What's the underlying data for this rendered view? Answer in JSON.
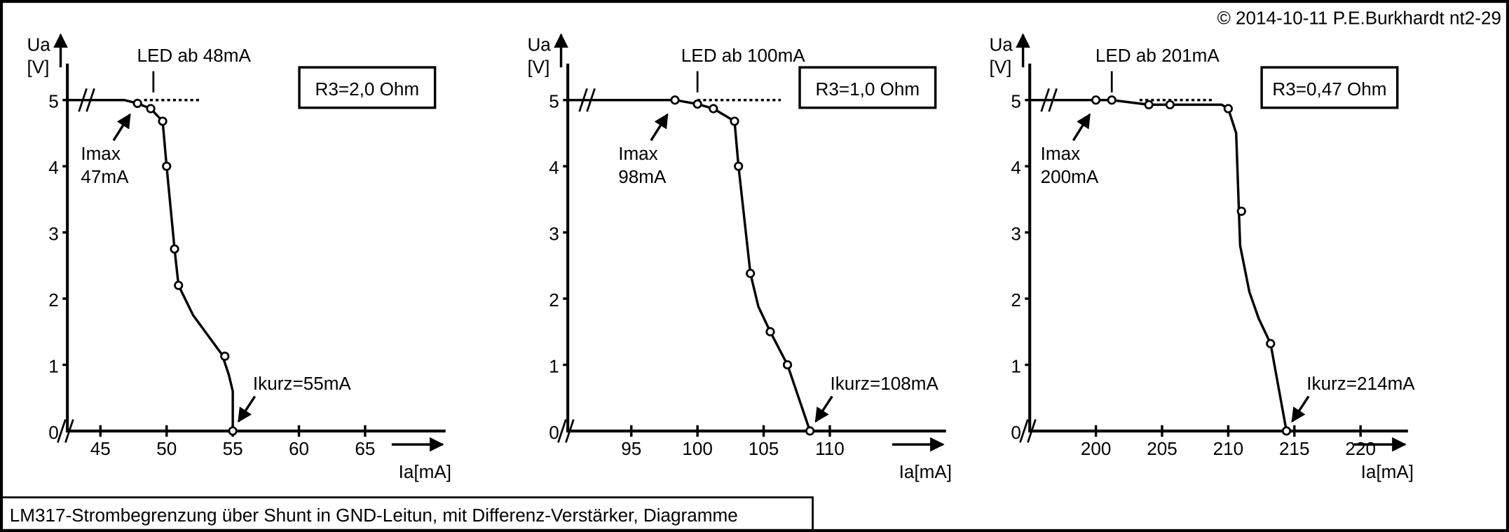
{
  "copyright": "© 2014-10-11 P.E.Burkhardt nt2-29",
  "caption": "LM317-Strombegrenzung über Shunt in GND-Leitun, mit Differenz-Verstärker, Diagramme",
  "chart_data": [
    {
      "type": "line",
      "title": "R3=2,0 Ohm",
      "ylabel": "Ua",
      "yunit": "[V]",
      "xlabel": "Ia[mA]",
      "xlim": [
        42.5,
        71
      ],
      "ylim": [
        0,
        5
      ],
      "xticks": [
        45,
        50,
        55,
        60,
        65
      ],
      "yticks": [
        0,
        1,
        2,
        3,
        4,
        5
      ],
      "grid": false,
      "line": [
        [
          42.5,
          5
        ],
        [
          46.8,
          5
        ],
        [
          47.8,
          4.95
        ],
        [
          48.8,
          4.87
        ],
        [
          49.7,
          4.68
        ],
        [
          50,
          4
        ],
        [
          50.6,
          2.75
        ],
        [
          50.9,
          2.2
        ],
        [
          52,
          1.75
        ],
        [
          54.2,
          1.15
        ],
        [
          54.7,
          0.85
        ],
        [
          55,
          0.6
        ],
        [
          55,
          0
        ]
      ],
      "points": [
        [
          47.8,
          4.95
        ],
        [
          48.8,
          4.87
        ],
        [
          49.7,
          4.68
        ],
        [
          50,
          4
        ],
        [
          50.6,
          2.75
        ],
        [
          50.9,
          2.2
        ],
        [
          54.4,
          1.13
        ],
        [
          55,
          0
        ]
      ],
      "led_line": [
        48.3,
        52.5
      ],
      "annotations": {
        "led": "LED ab 48mA",
        "led_x": 49,
        "imax": [
          "Imax",
          "47mA"
        ],
        "imax_x": 47.3,
        "ikurz": "Ikurz=55mA",
        "ikurz_x": 55
      }
    },
    {
      "type": "line",
      "title": "R3=1,0 Ohm",
      "ylabel": "Ua",
      "yunit": "[V]",
      "xlabel": "Ia[mA]",
      "xlim": [
        90.2,
        118.5
      ],
      "ylim": [
        0,
        5
      ],
      "xticks": [
        95,
        100,
        105,
        110
      ],
      "yticks": [
        0,
        1,
        2,
        3,
        4,
        5
      ],
      "grid": false,
      "line": [
        [
          90.2,
          5
        ],
        [
          98.3,
          5
        ],
        [
          100,
          4.94
        ],
        [
          101.2,
          4.87
        ],
        [
          102.8,
          4.68
        ],
        [
          103.1,
          4
        ],
        [
          104,
          2.38
        ],
        [
          104.6,
          1.88
        ],
        [
          105.5,
          1.5
        ],
        [
          106.8,
          1.0
        ],
        [
          108.5,
          0
        ]
      ],
      "points": [
        [
          98.3,
          5
        ],
        [
          100,
          4.94
        ],
        [
          101.2,
          4.87
        ],
        [
          102.8,
          4.68
        ],
        [
          103.1,
          4
        ],
        [
          104,
          2.38
        ],
        [
          105.5,
          1.5
        ],
        [
          106.8,
          1.0
        ],
        [
          108.5,
          0
        ]
      ],
      "led_line": [
        100,
        106.3
      ],
      "annotations": {
        "led": "LED ab 100mA",
        "led_x": 100,
        "imax": [
          "Imax",
          "98mA"
        ],
        "imax_x": 97.8,
        "ikurz": "Ikurz=108mA",
        "ikurz_x": 108.5
      }
    },
    {
      "type": "line",
      "title": "R3=0,47 Ohm",
      "ylabel": "Ua",
      "yunit": "[V]",
      "xlabel": "Ia[mA]",
      "xlim": [
        195,
        223.5
      ],
      "ylim": [
        0,
        5
      ],
      "xticks": [
        200,
        205,
        210,
        215,
        220
      ],
      "yticks": [
        0,
        1,
        2,
        3,
        4,
        5
      ],
      "grid": false,
      "line": [
        [
          195,
          5
        ],
        [
          200,
          5
        ],
        [
          201.2,
          5
        ],
        [
          204,
          4.93
        ],
        [
          205.6,
          4.93
        ],
        [
          209.5,
          4.93
        ],
        [
          210,
          4.87
        ],
        [
          210.6,
          4.5
        ],
        [
          210.9,
          2.8
        ],
        [
          211.6,
          2.1
        ],
        [
          212.3,
          1.7
        ],
        [
          213.2,
          1.32
        ],
        [
          213.9,
          0.55
        ],
        [
          214.4,
          0
        ]
      ],
      "points": [
        [
          200,
          5
        ],
        [
          201.2,
          5
        ],
        [
          204,
          4.93
        ],
        [
          205.6,
          4.93
        ],
        [
          210,
          4.87
        ],
        [
          211,
          3.32
        ],
        [
          213.2,
          1.32
        ],
        [
          214.4,
          0
        ]
      ],
      "led_line": [
        203.3,
        208.9
      ],
      "annotations": {
        "led": "LED ab 201mA",
        "led_x": 201.2,
        "imax": [
          "Imax",
          "200mA"
        ],
        "imax_x": 199.6,
        "ikurz": "Ikurz=214mA",
        "ikurz_x": 214.4
      }
    }
  ]
}
